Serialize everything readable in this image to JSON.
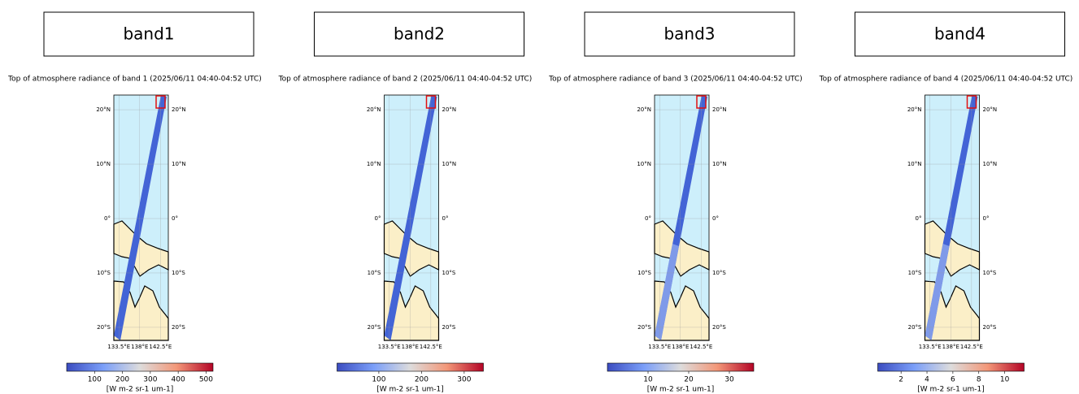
{
  "panels": [
    {
      "label": "band1",
      "title": "Top of atmosphere radiance of band 1 (2025/06/11 04:40-04:52 UTC)",
      "map": {
        "lonlim": [
          132.4,
          144.2
        ],
        "latlim": [
          -22.4,
          22.7
        ],
        "lat_ticks": [
          {
            "value": 20,
            "label": "20°N"
          },
          {
            "value": 10,
            "label": "10°N"
          },
          {
            "value": 0,
            "label": "0°"
          },
          {
            "value": -10,
            "label": "10°S"
          },
          {
            "value": -20,
            "label": "20°S"
          }
        ],
        "lon_ticks": [
          {
            "value": 133.5,
            "label": "133.5°E"
          },
          {
            "value": 138,
            "label": "138°E"
          },
          {
            "value": 142.5,
            "label": "142.5°E"
          }
        ]
      },
      "colorbar": {
        "lim": [
          0,
          525
        ],
        "ticks": [
          100,
          200,
          300,
          400,
          500
        ],
        "label": "[W m-2 sr-1 um-1]"
      }
    },
    {
      "label": "band2",
      "title": "Top of atmosphere radiance of band 2 (2025/06/11 04:40-04:52 UTC)",
      "map": {
        "lonlim": [
          132.4,
          144.2
        ],
        "latlim": [
          -22.4,
          22.7
        ],
        "lat_ticks": [
          {
            "value": 20,
            "label": "20°N"
          },
          {
            "value": 10,
            "label": "10°N"
          },
          {
            "value": 0,
            "label": "0°"
          },
          {
            "value": -10,
            "label": "10°S"
          },
          {
            "value": -20,
            "label": "20°S"
          }
        ],
        "lon_ticks": [
          {
            "value": 133.5,
            "label": "133.5°E"
          },
          {
            "value": 138,
            "label": "138°E"
          },
          {
            "value": 142.5,
            "label": "142.5°E"
          }
        ]
      },
      "colorbar": {
        "lim": [
          2,
          345
        ],
        "ticks": [
          100,
          200,
          300
        ],
        "label": "[W m-2 sr-1 um-1]"
      }
    },
    {
      "label": "band3",
      "title": "Top of atmosphere radiance of band 3 (2025/06/11 04:40-04:52 UTC)",
      "map": {
        "lonlim": [
          132.4,
          144.2
        ],
        "latlim": [
          -22.4,
          22.7
        ],
        "lat_ticks": [
          {
            "value": 20,
            "label": "20°N"
          },
          {
            "value": 10,
            "label": "10°N"
          },
          {
            "value": 0,
            "label": "0°"
          },
          {
            "value": -10,
            "label": "10°S"
          },
          {
            "value": -20,
            "label": "20°S"
          }
        ],
        "lon_ticks": [
          {
            "value": 133.5,
            "label": "133.5°E"
          },
          {
            "value": 138,
            "label": "138°E"
          },
          {
            "value": 142.5,
            "label": "142.5°E"
          }
        ]
      },
      "colorbar": {
        "lim": [
          0,
          36
        ],
        "ticks": [
          10,
          20,
          30
        ],
        "label": "[W m-2 sr-1 um-1]"
      }
    },
    {
      "label": "band4",
      "title": "Top of atmosphere radiance of band 4 (2025/06/11 04:40-04:52 UTC)",
      "map": {
        "lonlim": [
          132.4,
          144.2
        ],
        "latlim": [
          -22.4,
          22.7
        ],
        "lat_ticks": [
          {
            "value": 20,
            "label": "20°N"
          },
          {
            "value": 10,
            "label": "10°N"
          },
          {
            "value": 0,
            "label": "0°"
          },
          {
            "value": -10,
            "label": "10°S"
          },
          {
            "value": -20,
            "label": "20°S"
          }
        ],
        "lon_ticks": [
          {
            "value": 133.5,
            "label": "133.5°E"
          },
          {
            "value": 138,
            "label": "138°E"
          },
          {
            "value": 142.5,
            "label": "142.5°E"
          }
        ]
      },
      "colorbar": {
        "lim": [
          0.2,
          11.5
        ],
        "ticks": [
          2,
          4,
          6,
          8,
          10
        ],
        "label": "[W m-2 sr-1 um-1]"
      }
    }
  ]
}
